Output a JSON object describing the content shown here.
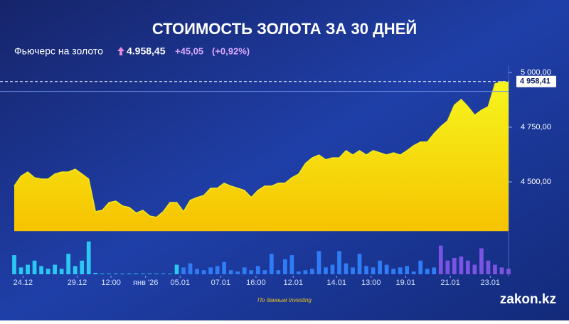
{
  "chart_data": {
    "type": "area",
    "title": "СТОИМОСТЬ ЗОЛОТА ЗА 30 ДНЕЙ",
    "subtitle": {
      "label": "Фьючерс на золото",
      "price": "4.958,45",
      "change": "+45,05",
      "change_pct": "(+0,92%)"
    },
    "color": "#f2e81c",
    "values": [
      4481,
      4526,
      4545,
      4519,
      4513,
      4513,
      4536,
      4545,
      4545,
      4558,
      4536,
      4513,
      4364,
      4370,
      4406,
      4412,
      4390,
      4383,
      4357,
      4370,
      4344,
      4338,
      4364,
      4406,
      4406,
      4364,
      4416,
      4429,
      4438,
      4471,
      4471,
      4494,
      4481,
      4471,
      4461,
      4429,
      4461,
      4481,
      4481,
      4494,
      4494,
      4519,
      4536,
      4584,
      4610,
      4623,
      4601,
      4610,
      4610,
      4643,
      4623,
      4643,
      4623,
      4643,
      4633,
      4623,
      4633,
      4623,
      4643,
      4666,
      4682,
      4682,
      4721,
      4753,
      4779,
      4851,
      4877,
      4844,
      4805,
      4828,
      4844,
      4948,
      4958,
      4955
    ],
    "xlim": [
      0,
      73
    ],
    "ylim": [
      4275,
      5020
    ],
    "yticks": [
      {
        "value": 4500,
        "label": "4 500,00"
      },
      {
        "value": 4750,
        "label": "4 750,00"
      },
      {
        "value": 5000,
        "label": "5 000,00"
      }
    ],
    "xticks": [
      {
        "value": 1.3,
        "label": "24.12"
      },
      {
        "value": 9.3,
        "label": "29.12"
      },
      {
        "value": 14.3,
        "label": "12:00"
      },
      {
        "value": 19.4,
        "label": "янв '26"
      },
      {
        "value": 24.5,
        "label": "05.01"
      },
      {
        "value": 30.5,
        "label": "07.01"
      },
      {
        "value": 35.7,
        "label": "16:00"
      },
      {
        "value": 41.2,
        "label": "12.01"
      },
      {
        "value": 47.6,
        "label": "14.01"
      },
      {
        "value": 52.7,
        "label": "13:00"
      },
      {
        "value": 57.8,
        "label": "19.01"
      },
      {
        "value": 64.4,
        "label": "21.01"
      },
      {
        "value": 70.3,
        "label": "23.01"
      }
    ],
    "current_price": {
      "value": 4958.41,
      "label": "4 958,41"
    },
    "prev_close": 4913.4,
    "volume_lim": [
      0,
      50
    ],
    "volume": [
      {
        "color": "#2bc8f2",
        "start": 0,
        "values": [
          28,
          10,
          14,
          20,
          12,
          8,
          14,
          8,
          30,
          12,
          20,
          48,
          2,
          1,
          1,
          1,
          1,
          1,
          1,
          1,
          1,
          1,
          1,
          1,
          14
        ]
      },
      {
        "color": "#2f7df6",
        "start": 25,
        "values": [
          10,
          16,
          8,
          6,
          10,
          12,
          18,
          6,
          4,
          10,
          6,
          12,
          6,
          30,
          6,
          22,
          28,
          4,
          6,
          8,
          34,
          10,
          14,
          34,
          16,
          10,
          30,
          12,
          10,
          20,
          14,
          8,
          10,
          12,
          4,
          20,
          8,
          10
        ]
      },
      {
        "color": "#7b54e4",
        "start": 63,
        "values": [
          42,
          20,
          24,
          26,
          20,
          14,
          38,
          20,
          14,
          10,
          8
        ]
      }
    ],
    "source": "По данным Investing",
    "logo": "zakon.kz"
  }
}
